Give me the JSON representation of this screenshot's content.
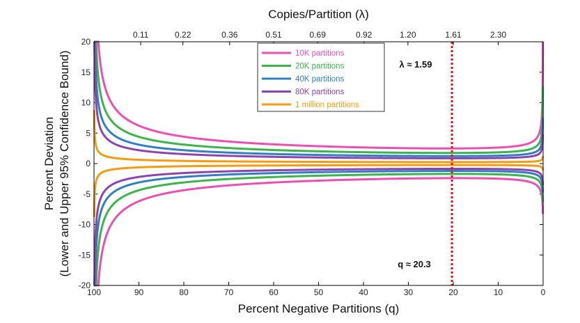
{
  "chart_data": {
    "type": "line",
    "title": "",
    "xlabel": "Percent Negative Partitions (q)",
    "x2label": "Copies/Partition (λ)",
    "ylabel_line1": "Percent Deviation",
    "ylabel_line2": "(Lower and Upper 95% Confidence Bound)",
    "xlim": [
      100,
      0
    ],
    "ylim": [
      -20,
      20
    ],
    "x_ticks": [
      100,
      90,
      80,
      70,
      60,
      50,
      40,
      30,
      20,
      10,
      0
    ],
    "y_ticks": [
      20,
      15,
      10,
      5,
      0,
      -5,
      -10,
      -15,
      -20
    ],
    "top_ticks": [
      {
        "q": 89.6,
        "label": "0.11"
      },
      {
        "q": 80.2,
        "label": "0.22"
      },
      {
        "q": 69.8,
        "label": "0.36"
      },
      {
        "q": 60.0,
        "label": "0.51"
      },
      {
        "q": 50.2,
        "label": "0.69"
      },
      {
        "q": 39.9,
        "label": "0.92"
      },
      {
        "q": 30.1,
        "label": "1.20"
      },
      {
        "q": 20.0,
        "label": "1.61"
      },
      {
        "q": 10.0,
        "label": "2.30"
      }
    ],
    "legend_position": "top-center",
    "series": [
      {
        "name": "10K partitions",
        "color": "#ec4fb4",
        "partitions": 10000
      },
      {
        "name": "20K partitions",
        "color": "#3cb44b",
        "partitions": 20000
      },
      {
        "name": "40K partitions",
        "color": "#2f7fc1",
        "partitions": 40000
      },
      {
        "name": "80K partitions",
        "color": "#8e44ad",
        "partitions": 80000
      },
      {
        "name": "1 million partitions",
        "color": "#f39c12",
        "partitions": 1000000
      }
    ],
    "reference_line": {
      "x": 20.3,
      "color": "#dd1111"
    },
    "annotations": {
      "lambda_label": "λ ≈ 1.59",
      "q_label": "q ≈ 20.3"
    }
  }
}
